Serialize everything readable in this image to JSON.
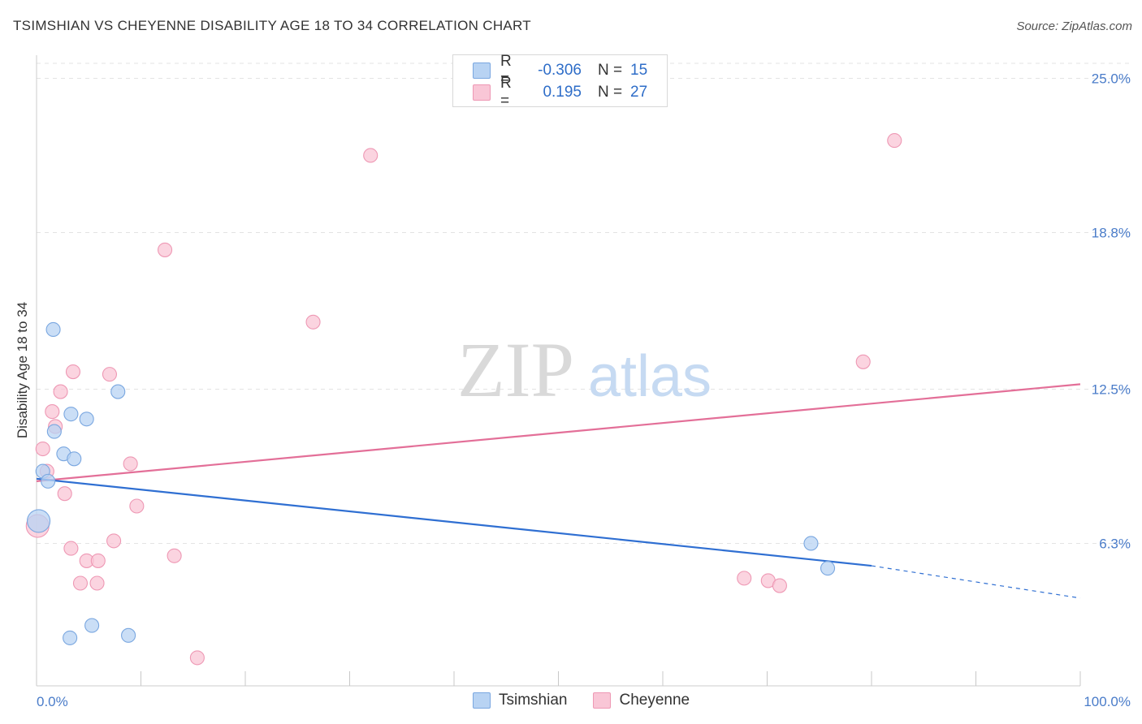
{
  "title": "TSIMSHIAN VS CHEYENNE DISABILITY AGE 18 TO 34 CORRELATION CHART",
  "source": "Source: ZipAtlas.com",
  "watermark": {
    "zip": "ZIP",
    "atlas": "atlas"
  },
  "legend": {
    "rows": [
      {
        "r_label": "R =",
        "r_value": "-0.306",
        "n_label": "N =",
        "n_value": "15"
      },
      {
        "r_label": "R =",
        "r_value": "0.195",
        "n_label": "N =",
        "n_value": "27"
      }
    ]
  },
  "bottom_legend": [
    "Tsimshian",
    "Cheyenne"
  ],
  "colors": {
    "tsimshian_fill": "#b8d3f3",
    "tsimshian_stroke": "#7aa7e0",
    "tsimshian_line": "#2f6fd2",
    "cheyenne_fill": "#f9c6d6",
    "cheyenne_stroke": "#ee98b4",
    "cheyenne_line": "#e36f98",
    "tick_text": "#4a7cc9",
    "grid": "#e3e3e3"
  },
  "chart_data": {
    "type": "scatter",
    "title": "TSIMSHIAN VS CHEYENNE DISABILITY AGE 18 TO 34 CORRELATION CHART",
    "xlabel": "",
    "ylabel": "Disability Age 18 to 34",
    "xlim": [
      0,
      100
    ],
    "ylim": [
      0,
      25
    ],
    "x_tick_labels": [
      "0.0%",
      "100.0%"
    ],
    "y_ticks": [
      6.3,
      12.5,
      18.8,
      25.0
    ],
    "y_tick_labels": [
      "6.3%",
      "12.5%",
      "18.8%",
      "25.0%"
    ],
    "grid": "horizontal dashed",
    "legend_position": "top-center",
    "series": [
      {
        "name": "Tsimshian",
        "points": [
          [
            1.6,
            14.9
          ],
          [
            3.3,
            11.5
          ],
          [
            1.7,
            10.8
          ],
          [
            4.8,
            11.3
          ],
          [
            7.8,
            12.4
          ],
          [
            2.6,
            9.9
          ],
          [
            3.6,
            9.7
          ],
          [
            0.6,
            9.2
          ],
          [
            1.1,
            8.8
          ],
          [
            0.2,
            7.2
          ],
          [
            74.2,
            6.3
          ],
          [
            75.8,
            5.3
          ],
          [
            5.3,
            3.0
          ],
          [
            3.2,
            2.5
          ],
          [
            8.8,
            2.6
          ]
        ],
        "trend": {
          "x": [
            0,
            80
          ],
          "y": [
            8.9,
            5.4
          ],
          "dashed_extension": {
            "x": [
              80,
              100
            ],
            "y": [
              5.4,
              4.1
            ]
          }
        }
      },
      {
        "name": "Cheyenne",
        "points": [
          [
            32.0,
            21.9
          ],
          [
            82.2,
            22.5
          ],
          [
            12.3,
            18.1
          ],
          [
            26.5,
            15.2
          ],
          [
            79.2,
            13.6
          ],
          [
            3.5,
            13.2
          ],
          [
            7.0,
            13.1
          ],
          [
            2.3,
            12.4
          ],
          [
            1.5,
            11.6
          ],
          [
            1.8,
            11.0
          ],
          [
            0.6,
            10.1
          ],
          [
            1.0,
            9.2
          ],
          [
            9.0,
            9.5
          ],
          [
            2.7,
            8.3
          ],
          [
            9.6,
            7.8
          ],
          [
            0.1,
            7.0
          ],
          [
            7.4,
            6.4
          ],
          [
            3.3,
            6.1
          ],
          [
            13.2,
            5.8
          ],
          [
            4.8,
            5.6
          ],
          [
            5.9,
            5.6
          ],
          [
            4.2,
            4.7
          ],
          [
            5.8,
            4.7
          ],
          [
            67.8,
            4.9
          ],
          [
            70.1,
            4.8
          ],
          [
            71.2,
            4.6
          ],
          [
            15.4,
            1.7
          ]
        ],
        "trend": {
          "x": [
            0,
            100
          ],
          "y": [
            8.8,
            12.7
          ]
        }
      }
    ]
  }
}
